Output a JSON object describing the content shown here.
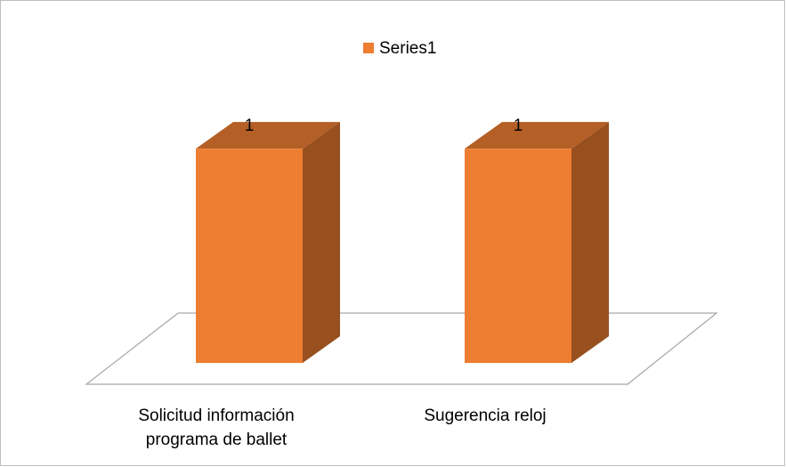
{
  "chart_data": {
    "type": "bar3d",
    "categories": [
      "Solicitud información programa de ballet",
      "Sugerencia reloj"
    ],
    "series": [
      {
        "name": "Series1",
        "color": "#ed7d31",
        "values": [
          1,
          1
        ]
      }
    ],
    "ylim": [
      0,
      1.2
    ],
    "legend": "top"
  }
}
